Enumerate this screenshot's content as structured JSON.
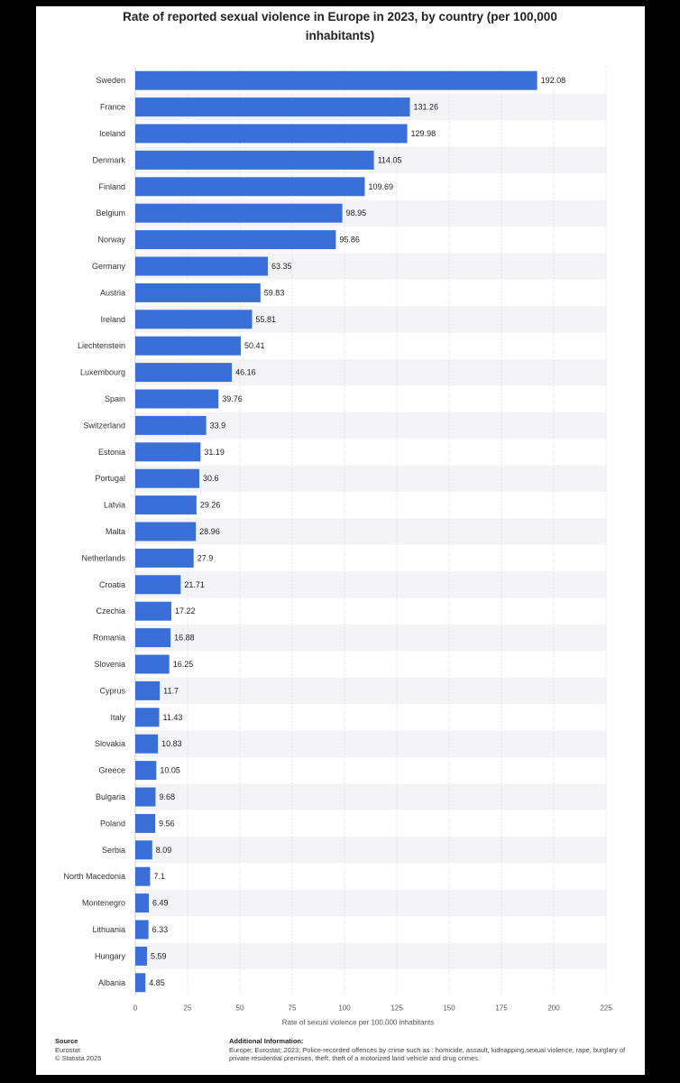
{
  "chart_data": {
    "type": "bar",
    "orientation": "horizontal",
    "title_lines": [
      "Rate of reported sexual violence in Europe in 2023, by country (per 100,000",
      "inhabitants)"
    ],
    "xlabel": "Rate of sexual violence per 100,000 inhabitants",
    "ylabel": "",
    "xlim": [
      0,
      225
    ],
    "ticks": [
      0,
      25,
      50,
      75,
      100,
      125,
      150,
      175,
      200,
      225
    ],
    "bar_color": "#3a6fd8",
    "categories": [
      "Sweden",
      "France",
      "Iceland",
      "Denmark",
      "Finland",
      "Belgium",
      "Norway",
      "Germany",
      "Austria",
      "Ireland",
      "Liechtenstein",
      "Luxembourg",
      "Spain",
      "Switzerland",
      "Estonia",
      "Portugal",
      "Latvia",
      "Malta",
      "Netherlands",
      "Croatia",
      "Czechia",
      "Romania",
      "Slovenia",
      "Cyprus",
      "Italy",
      "Slovakia",
      "Greece",
      "Bulgaria",
      "Poland",
      "Serbia",
      "North Macedonia",
      "Montenegro",
      "Lithuania",
      "Hungary",
      "Albania"
    ],
    "values": [
      192.08,
      131.26,
      129.98,
      114.05,
      109.69,
      98.95,
      95.86,
      63.35,
      59.83,
      55.81,
      50.41,
      46.16,
      39.76,
      33.9,
      31.19,
      30.6,
      29.26,
      28.96,
      27.9,
      21.71,
      17.22,
      16.88,
      16.25,
      11.7,
      11.43,
      10.83,
      10.05,
      9.68,
      9.56,
      8.09,
      7.1,
      6.49,
      6.33,
      5.59,
      4.85
    ],
    "value_labels": [
      "192.08",
      "131.26",
      "129.98",
      "114.05",
      "109.69",
      "98.95",
      "95.86",
      "63.35",
      "59.83",
      "55.81",
      "50.41",
      "46.16",
      "39.76",
      "33.9",
      "31.19",
      "30.6",
      "29.26",
      "28.96",
      "27.9",
      "21.71",
      "17.22",
      "16.88",
      "16.25",
      "11.7",
      "11.43",
      "10.83",
      "10.05",
      "9.68",
      "9.56",
      "8.09",
      "7.1",
      "6.49",
      "6.33",
      "5.59",
      "4.85"
    ]
  },
  "footer": {
    "source_heading": "Source",
    "source_lines": [
      "Eurostat",
      "© Statista 2025"
    ],
    "info_heading": "Additional Information:",
    "info_text": "Europe; Eurostat; 2023; Police-recorded offences by crime such as : homicide, assault, kidnapping,sexual violence, rape, burglary of private residential premises, theft, theft of a motorized land vehicle and drug crimes."
  }
}
